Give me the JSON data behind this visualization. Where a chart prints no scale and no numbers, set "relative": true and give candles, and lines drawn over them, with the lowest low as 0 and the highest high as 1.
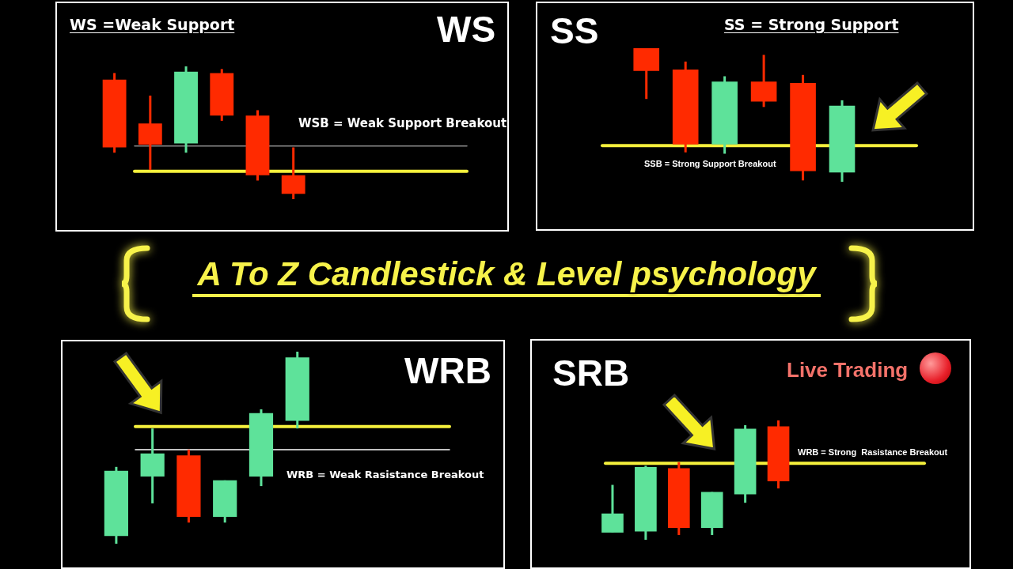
{
  "chart_data": [
    {
      "type": "candlestick",
      "relative": true,
      "title": "WS =Weak Support",
      "annotations": [
        "WS"
      ],
      "categories": [
        null,
        null,
        null,
        null,
        null,
        null
      ],
      "ohlc": [
        [
          0.9,
          0.95,
          0.35,
          0.39
        ],
        [
          0.57,
          0.78,
          0.22,
          0.41
        ],
        [
          0.42,
          1,
          0.35,
          0.96
        ],
        [
          0.95,
          0.98,
          0.59,
          0.63
        ],
        [
          0.63,
          0.67,
          0.14,
          0.18
        ],
        [
          0.18,
          0.39,
          0,
          0.04
        ]
      ],
      "colors": [
        "#ff2a00",
        "#ff2a00",
        "#5ee29a",
        "#ff2a00",
        "#ff2a00",
        "#ff2a00"
      ],
      "ref_lines": [
        {
          "axis": "y",
          "value": 0.4,
          "label": "WSB = Weak Support Breakout",
          "color": "#8a8a8a"
        },
        {
          "axis": "y",
          "value": 0.21,
          "color": "#f5f03c"
        }
      ]
    },
    {
      "type": "candlestick",
      "relative": true,
      "title": "SS = Strong Support",
      "annotations": [
        "SS"
      ],
      "categories": [
        null,
        null,
        null,
        null,
        null,
        null
      ],
      "ohlc": [
        [
          1,
          1,
          0.62,
          0.83
        ],
        [
          0.84,
          0.9,
          0.22,
          0.28
        ],
        [
          0.28,
          0.79,
          0.21,
          0.75
        ],
        [
          0.75,
          0.95,
          0.56,
          0.6
        ],
        [
          0.74,
          0.8,
          0.01,
          0.08
        ],
        [
          0.07,
          0.61,
          0,
          0.57
        ]
      ],
      "colors": [
        "#ff2a00",
        "#ff2a00",
        "#5ee29a",
        "#ff2a00",
        "#ff2a00",
        "#5ee29a"
      ],
      "ref_lines": [
        {
          "axis": "y",
          "value": 0.27,
          "label": "SSB = Strong Support Breakout",
          "color": "#f5f03c"
        }
      ]
    },
    {
      "type": "other",
      "title": "A To Z Candlestick & Level psychology"
    },
    {
      "type": "candlestick",
      "relative": true,
      "annotations": [
        "WRB"
      ],
      "categories": [
        null,
        null,
        null,
        null,
        null,
        null
      ],
      "ohlc": [
        [
          0.04,
          0.4,
          0,
          0.38
        ],
        [
          0.35,
          0.6,
          0.21,
          0.47
        ],
        [
          0.46,
          0.49,
          0.11,
          0.14
        ],
        [
          0.14,
          0.33,
          0.11,
          0.33
        ],
        [
          0.35,
          0.7,
          0.3,
          0.68
        ],
        [
          0.64,
          1,
          0.6,
          0.97
        ]
      ],
      "colors": [
        "#5ee29a",
        "#5ee29a",
        "#ff2a00",
        "#5ee29a",
        "#5ee29a",
        "#5ee29a"
      ],
      "ref_lines": [
        {
          "axis": "y",
          "value": 0.61,
          "color": "#f5f03c"
        },
        {
          "axis": "y",
          "value": 0.49,
          "label": "WRB = Weak Rasistance Breakout",
          "color": "#ffffff"
        }
      ]
    },
    {
      "type": "candlestick",
      "relative": true,
      "annotations": [
        "SRB",
        "Live Trading"
      ],
      "categories": [
        null,
        null,
        null,
        null,
        null,
        null
      ],
      "ohlc": [
        [
          0.06,
          0.46,
          0.06,
          0.22
        ],
        [
          0.07,
          0.62,
          0,
          0.61
        ],
        [
          0.6,
          0.65,
          0.04,
          0.1
        ],
        [
          0.1,
          0.4,
          0.04,
          0.4
        ],
        [
          0.38,
          0.96,
          0.31,
          0.93
        ],
        [
          0.95,
          1,
          0.43,
          0.49
        ]
      ],
      "colors": [
        "#5ee29a",
        "#5ee29a",
        "#ff2a00",
        "#5ee29a",
        "#5ee29a",
        "#ff2a00"
      ],
      "ref_lines": [
        {
          "axis": "y",
          "value": 0.64,
          "label": "WRB = Strong  Rasistance Breakout",
          "color": "#f5f03c"
        }
      ]
    }
  ]
}
